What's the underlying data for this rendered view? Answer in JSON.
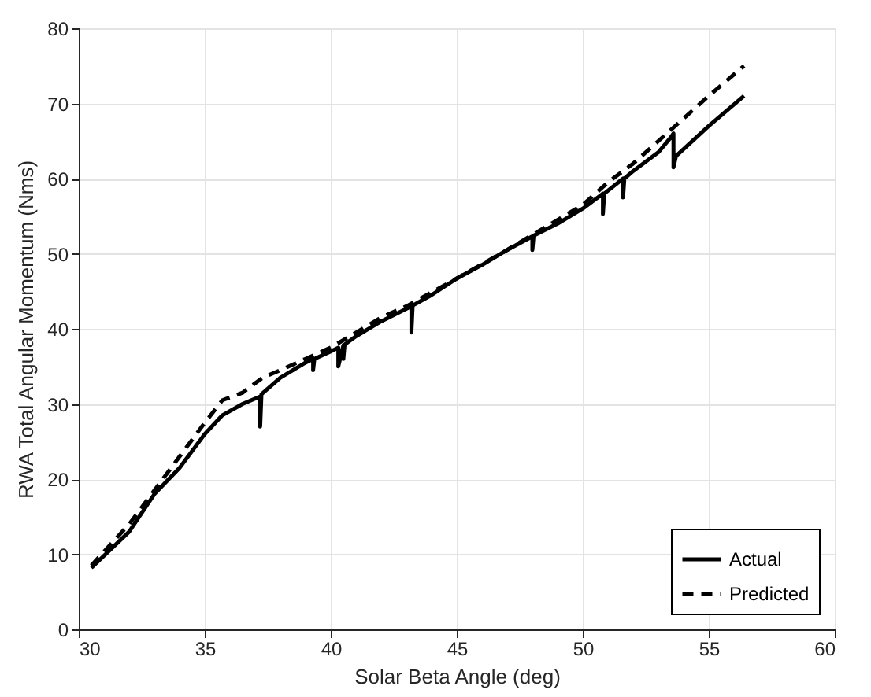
{
  "chart_data": {
    "type": "line",
    "xlabel": "Solar Beta Angle (deg)",
    "ylabel": "RWA Total Angular Momentum (Nms)",
    "xlim": [
      30,
      60
    ],
    "xticks": [
      30,
      35,
      40,
      45,
      50,
      55,
      60
    ],
    "ylim": [
      0,
      80
    ],
    "yticks": [
      0,
      10,
      20,
      30,
      40,
      50,
      60,
      70,
      80
    ],
    "grid": true,
    "legend": "bottom right",
    "series": [
      {
        "name": "Actual",
        "color": "#000000",
        "line_style": "solid",
        "x": [
          30.5,
          32,
          33,
          34,
          35,
          35.7,
          36.5,
          37.2,
          37.2,
          37.25,
          38,
          39,
          39.3,
          39.3,
          39.35,
          40,
          40.3,
          40.3,
          40.5,
          40.5,
          40.55,
          41,
          42,
          43.2,
          43.2,
          43.25,
          44,
          45,
          46,
          47,
          48,
          48,
          48.05,
          49,
          50,
          50.8,
          50.8,
          50.85,
          51.6,
          51.6,
          51.65,
          52,
          53,
          53.5,
          53.6,
          53.6,
          53.7,
          55,
          56.4
        ],
        "values": [
          8.2,
          13,
          18,
          21.5,
          26,
          28.5,
          30,
          31,
          27,
          31.3,
          33.5,
          35.5,
          36,
          34.5,
          36,
          37,
          37.5,
          35,
          37.8,
          36,
          37.9,
          39,
          41,
          43,
          39.5,
          43.1,
          44.5,
          46.7,
          48.5,
          50.5,
          52.3,
          50.5,
          52.4,
          54,
          56,
          58,
          55.3,
          58,
          60,
          57.5,
          60,
          61,
          63.5,
          65.5,
          66,
          61.5,
          63,
          67,
          71
        ]
      },
      {
        "name": "Predicted",
        "color": "#000000",
        "line_style": "dashed",
        "x": [
          30.5,
          32,
          33,
          34,
          35,
          35.7,
          36.5,
          37.3,
          38,
          39,
          40,
          41,
          42,
          43,
          45,
          47,
          49,
          50,
          51,
          52,
          53,
          54,
          55,
          56.4
        ],
        "values": [
          8.5,
          14,
          18.5,
          23,
          27.5,
          30.5,
          31.5,
          33.5,
          34.5,
          36,
          37.5,
          39.5,
          41.5,
          43,
          46.7,
          50.5,
          54.5,
          56.5,
          59.5,
          62,
          65,
          68,
          71,
          75
        ]
      }
    ]
  }
}
